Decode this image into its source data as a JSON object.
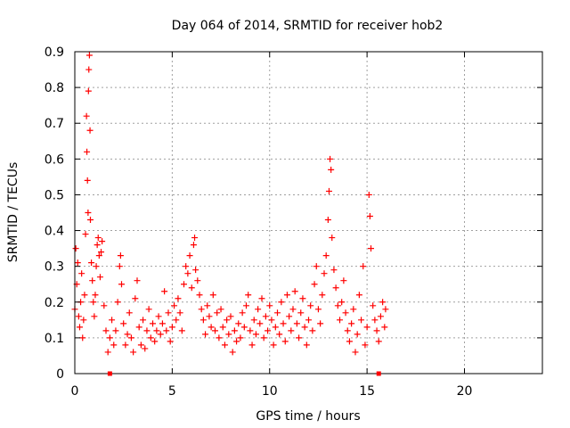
{
  "chart_data": {
    "type": "scatter",
    "title": "Day 064 of 2014, SRMTID for receiver hob2",
    "xlabel": "GPS time / hours",
    "ylabel": "SRMTID / TECUs",
    "xlim": [
      0,
      24
    ],
    "ylim": [
      0,
      0.9
    ],
    "grid": true,
    "x_ticks": [
      "0",
      "5",
      "10",
      "15",
      "20"
    ],
    "x_tick_values": [
      0,
      5,
      10,
      15,
      20
    ],
    "y_ticks": [
      "0",
      "0.1",
      "0.2",
      "0.3",
      "0.4",
      "0.5",
      "0.6",
      "0.7",
      "0.8",
      "0.9"
    ],
    "y_tick_values": [
      0,
      0.1,
      0.2,
      0.3,
      0.4,
      0.5,
      0.6,
      0.7,
      0.8,
      0.9
    ],
    "marker": "+",
    "series_color": "#ff0000",
    "axis_markers_x": [
      1.8,
      15.6
    ],
    "series": [
      {
        "name": "SRMTID",
        "points": [
          [
            0.0,
            0.18
          ],
          [
            0.05,
            0.35
          ],
          [
            0.1,
            0.25
          ],
          [
            0.15,
            0.31
          ],
          [
            0.2,
            0.16
          ],
          [
            0.25,
            0.13
          ],
          [
            0.3,
            0.2
          ],
          [
            0.35,
            0.28
          ],
          [
            0.4,
            0.1
          ],
          [
            0.45,
            0.15
          ],
          [
            0.5,
            0.22
          ],
          [
            0.55,
            0.39
          ],
          [
            0.6,
            0.72
          ],
          [
            0.62,
            0.62
          ],
          [
            0.65,
            0.54
          ],
          [
            0.68,
            0.45
          ],
          [
            0.7,
            0.79
          ],
          [
            0.72,
            0.85
          ],
          [
            0.75,
            0.89
          ],
          [
            0.78,
            0.68
          ],
          [
            0.8,
            0.43
          ],
          [
            0.85,
            0.31
          ],
          [
            0.9,
            0.26
          ],
          [
            0.95,
            0.2
          ],
          [
            1.0,
            0.16
          ],
          [
            1.05,
            0.22
          ],
          [
            1.1,
            0.3
          ],
          [
            1.15,
            0.36
          ],
          [
            1.2,
            0.38
          ],
          [
            1.25,
            0.33
          ],
          [
            1.3,
            0.27
          ],
          [
            1.35,
            0.34
          ],
          [
            1.4,
            0.37
          ],
          [
            1.5,
            0.19
          ],
          [
            1.6,
            0.12
          ],
          [
            1.7,
            0.06
          ],
          [
            1.8,
            0.1
          ],
          [
            1.9,
            0.15
          ],
          [
            2.0,
            0.08
          ],
          [
            2.1,
            0.12
          ],
          [
            2.2,
            0.2
          ],
          [
            2.3,
            0.3
          ],
          [
            2.35,
            0.33
          ],
          [
            2.4,
            0.25
          ],
          [
            2.5,
            0.14
          ],
          [
            2.6,
            0.08
          ],
          [
            2.7,
            0.11
          ],
          [
            2.8,
            0.17
          ],
          [
            2.9,
            0.1
          ],
          [
            3.0,
            0.06
          ],
          [
            3.1,
            0.21
          ],
          [
            3.2,
            0.26
          ],
          [
            3.3,
            0.13
          ],
          [
            3.4,
            0.08
          ],
          [
            3.5,
            0.15
          ],
          [
            3.6,
            0.07
          ],
          [
            3.7,
            0.12
          ],
          [
            3.8,
            0.18
          ],
          [
            3.9,
            0.1
          ],
          [
            4.0,
            0.14
          ],
          [
            4.1,
            0.09
          ],
          [
            4.2,
            0.12
          ],
          [
            4.3,
            0.16
          ],
          [
            4.4,
            0.11
          ],
          [
            4.5,
            0.14
          ],
          [
            4.6,
            0.23
          ],
          [
            4.7,
            0.12
          ],
          [
            4.8,
            0.17
          ],
          [
            4.9,
            0.09
          ],
          [
            5.0,
            0.13
          ],
          [
            5.1,
            0.19
          ],
          [
            5.2,
            0.15
          ],
          [
            5.3,
            0.21
          ],
          [
            5.4,
            0.17
          ],
          [
            5.5,
            0.12
          ],
          [
            5.6,
            0.25
          ],
          [
            5.7,
            0.3
          ],
          [
            5.8,
            0.28
          ],
          [
            5.9,
            0.33
          ],
          [
            6.0,
            0.24
          ],
          [
            6.1,
            0.36
          ],
          [
            6.15,
            0.38
          ],
          [
            6.2,
            0.29
          ],
          [
            6.3,
            0.26
          ],
          [
            6.4,
            0.22
          ],
          [
            6.5,
            0.18
          ],
          [
            6.6,
            0.15
          ],
          [
            6.7,
            0.11
          ],
          [
            6.8,
            0.19
          ],
          [
            6.9,
            0.16
          ],
          [
            7.0,
            0.13
          ],
          [
            7.1,
            0.22
          ],
          [
            7.2,
            0.12
          ],
          [
            7.3,
            0.17
          ],
          [
            7.4,
            0.1
          ],
          [
            7.5,
            0.18
          ],
          [
            7.6,
            0.13
          ],
          [
            7.7,
            0.08
          ],
          [
            7.8,
            0.15
          ],
          [
            7.9,
            0.11
          ],
          [
            8.0,
            0.16
          ],
          [
            8.1,
            0.06
          ],
          [
            8.2,
            0.12
          ],
          [
            8.3,
            0.09
          ],
          [
            8.4,
            0.14
          ],
          [
            8.5,
            0.1
          ],
          [
            8.6,
            0.17
          ],
          [
            8.7,
            0.13
          ],
          [
            8.8,
            0.19
          ],
          [
            8.9,
            0.22
          ],
          [
            9.0,
            0.12
          ],
          [
            9.1,
            0.08
          ],
          [
            9.2,
            0.15
          ],
          [
            9.3,
            0.11
          ],
          [
            9.4,
            0.18
          ],
          [
            9.5,
            0.14
          ],
          [
            9.6,
            0.21
          ],
          [
            9.7,
            0.1
          ],
          [
            9.8,
            0.16
          ],
          [
            9.9,
            0.12
          ],
          [
            10.0,
            0.19
          ],
          [
            10.1,
            0.15
          ],
          [
            10.2,
            0.08
          ],
          [
            10.3,
            0.13
          ],
          [
            10.4,
            0.17
          ],
          [
            10.5,
            0.11
          ],
          [
            10.6,
            0.2
          ],
          [
            10.7,
            0.14
          ],
          [
            10.8,
            0.09
          ],
          [
            10.9,
            0.22
          ],
          [
            11.0,
            0.16
          ],
          [
            11.1,
            0.12
          ],
          [
            11.2,
            0.18
          ],
          [
            11.3,
            0.23
          ],
          [
            11.4,
            0.14
          ],
          [
            11.5,
            0.1
          ],
          [
            11.6,
            0.17
          ],
          [
            11.7,
            0.21
          ],
          [
            11.8,
            0.13
          ],
          [
            11.9,
            0.08
          ],
          [
            12.0,
            0.15
          ],
          [
            12.1,
            0.19
          ],
          [
            12.2,
            0.12
          ],
          [
            12.3,
            0.25
          ],
          [
            12.4,
            0.3
          ],
          [
            12.5,
            0.18
          ],
          [
            12.6,
            0.14
          ],
          [
            12.7,
            0.22
          ],
          [
            12.8,
            0.28
          ],
          [
            12.9,
            0.33
          ],
          [
            13.0,
            0.43
          ],
          [
            13.05,
            0.51
          ],
          [
            13.1,
            0.6
          ],
          [
            13.15,
            0.57
          ],
          [
            13.2,
            0.38
          ],
          [
            13.3,
            0.29
          ],
          [
            13.4,
            0.24
          ],
          [
            13.5,
            0.19
          ],
          [
            13.6,
            0.15
          ],
          [
            13.7,
            0.2
          ],
          [
            13.8,
            0.26
          ],
          [
            13.9,
            0.17
          ],
          [
            14.0,
            0.12
          ],
          [
            14.1,
            0.09
          ],
          [
            14.2,
            0.14
          ],
          [
            14.3,
            0.18
          ],
          [
            14.4,
            0.06
          ],
          [
            14.5,
            0.11
          ],
          [
            14.6,
            0.22
          ],
          [
            14.7,
            0.15
          ],
          [
            14.8,
            0.3
          ],
          [
            14.9,
            0.08
          ],
          [
            15.0,
            0.13
          ],
          [
            15.1,
            0.5
          ],
          [
            15.15,
            0.44
          ],
          [
            15.2,
            0.35
          ],
          [
            15.3,
            0.19
          ],
          [
            15.4,
            0.15
          ],
          [
            15.5,
            0.12
          ],
          [
            15.6,
            0.09
          ],
          [
            15.7,
            0.16
          ],
          [
            15.8,
            0.2
          ],
          [
            15.9,
            0.13
          ],
          [
            15.95,
            0.18
          ]
        ]
      }
    ]
  }
}
